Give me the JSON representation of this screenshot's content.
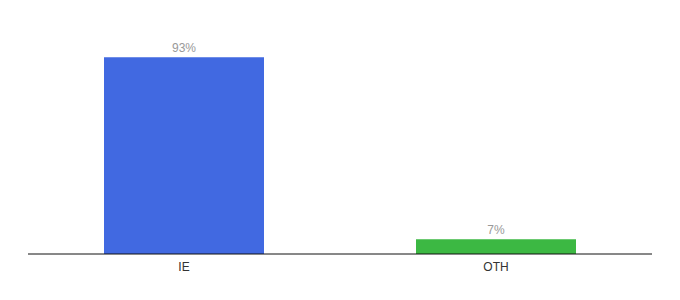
{
  "chart_data": {
    "type": "bar",
    "categories": [
      "IE",
      "OTH"
    ],
    "values": [
      93,
      7
    ],
    "colors": [
      "#4169e1",
      "#3cb843"
    ],
    "value_labels": [
      "93%",
      "7%"
    ],
    "data_labels": true,
    "ylim": [
      0,
      105
    ],
    "tick_labels": "x",
    "grid": false
  }
}
